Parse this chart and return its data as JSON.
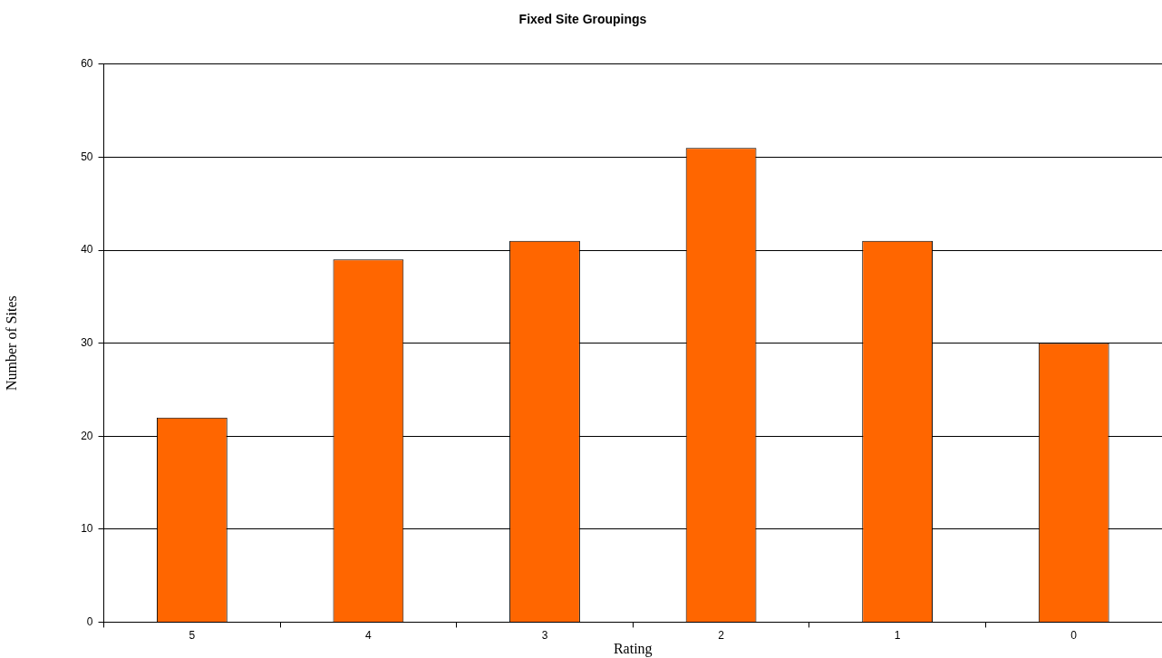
{
  "chart_data": {
    "type": "bar",
    "title": "Fixed Site Groupings",
    "xlabel": "Rating",
    "ylabel": "Number of Sites",
    "categories": [
      "5",
      "4",
      "3",
      "2",
      "1",
      "0"
    ],
    "values": [
      22,
      39,
      41,
      51,
      41,
      30
    ],
    "color": "#ff6600",
    "ylim": [
      0,
      60
    ],
    "yticks": [
      0,
      10,
      20,
      30,
      40,
      50,
      60
    ],
    "grid": "y",
    "legend": false
  }
}
